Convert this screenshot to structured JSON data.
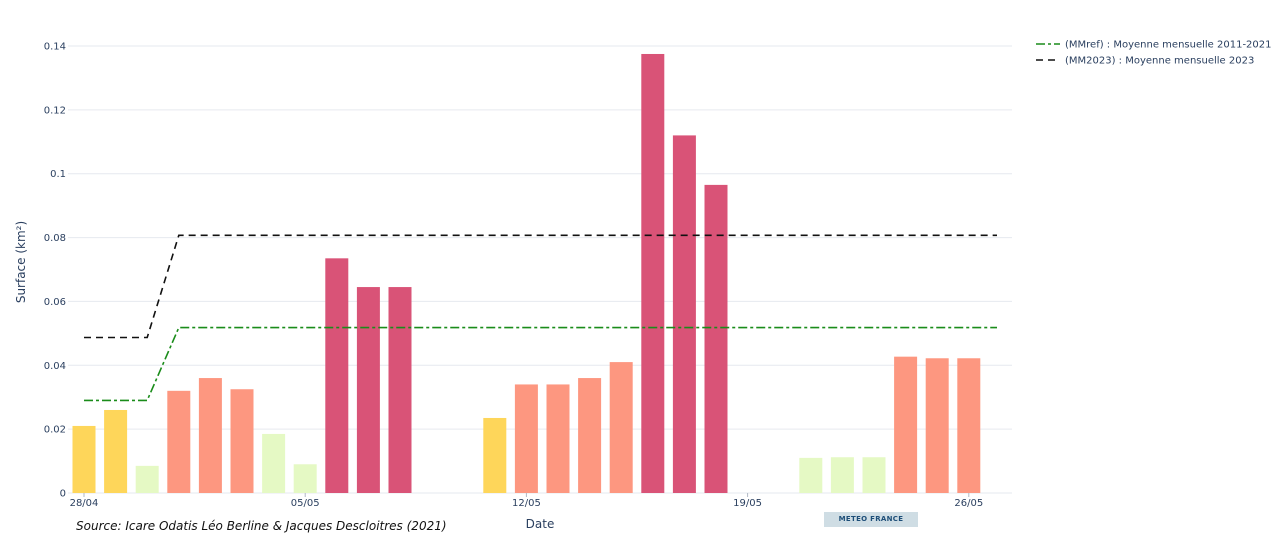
{
  "chart_data": {
    "type": "bar",
    "title": "",
    "xlabel": "Date",
    "ylabel": "Surface (km²)",
    "ylim": [
      0,
      0.14
    ],
    "yticks": [
      0,
      0.02,
      0.04,
      0.06,
      0.08,
      0.1,
      0.12,
      0.14
    ],
    "ytick_labels": [
      "0",
      "0.02",
      "0.04",
      "0.06",
      "0.08",
      "0.1",
      "0.12",
      "0.14"
    ],
    "x_dates": [
      "28/04",
      "29/04",
      "30/04",
      "01/05",
      "02/05",
      "03/05",
      "04/05",
      "05/05",
      "06/05",
      "07/05",
      "08/05",
      "09/05",
      "10/05",
      "11/05",
      "12/05",
      "13/05",
      "14/05",
      "15/05",
      "16/05",
      "17/05",
      "18/05",
      "19/05",
      "20/05",
      "21/05",
      "22/05",
      "23/05",
      "24/05",
      "25/05",
      "26/05",
      "27/05"
    ],
    "xticks": [
      "28/04",
      "05/05",
      "12/05",
      "19/05",
      "26/05"
    ],
    "values": [
      0.021,
      0.026,
      0.0085,
      0.032,
      0.036,
      0.0325,
      0.0185,
      0.009,
      0.0735,
      0.0645,
      0.0645,
      null,
      null,
      0.0235,
      0.034,
      0.034,
      0.036,
      0.041,
      0.1375,
      0.112,
      0.0965,
      null,
      null,
      0.011,
      0.0112,
      0.0112,
      0.0427,
      0.0422,
      0.0422,
      null
    ],
    "bar_colors": [
      "#fed65a",
      "#fed65a",
      "#e5f9c4",
      "#fd9780",
      "#fd9780",
      "#fd9780",
      "#e5f9c4",
      "#e5f9c4",
      "#d95377",
      "#d95377",
      "#d95377",
      null,
      null,
      "#fed65a",
      "#fd9780",
      "#fd9780",
      "#fd9780",
      "#fd9780",
      "#d95377",
      "#d95377",
      "#d95377",
      null,
      null,
      "#e5f9c4",
      "#e5f9c4",
      "#e5f9c4",
      "#fd9780",
      "#fd9780",
      "#fd9780",
      null
    ],
    "series": [
      {
        "name": "(MMref) : Moyenne mensuelle 2011-2021",
        "color": "#1a8c1a",
        "dash": "dashdot",
        "points": [
          [
            0,
            0.029
          ],
          [
            2,
            0.029
          ],
          [
            3,
            0.0518
          ],
          [
            29,
            0.0518
          ]
        ]
      },
      {
        "name": "(MM2023) : Moyenne mensuelle 2023",
        "color": "#111111",
        "dash": "dash",
        "points": [
          [
            0,
            0.0487
          ],
          [
            2,
            0.0487
          ],
          [
            3,
            0.0807
          ],
          [
            29,
            0.0807
          ]
        ]
      }
    ],
    "legend_position": "top-right",
    "grid": true
  },
  "source": "Source: Icare Odatis Léo Berline & Jacques Descloitres (2021)",
  "badge": "METEO FRANCE"
}
